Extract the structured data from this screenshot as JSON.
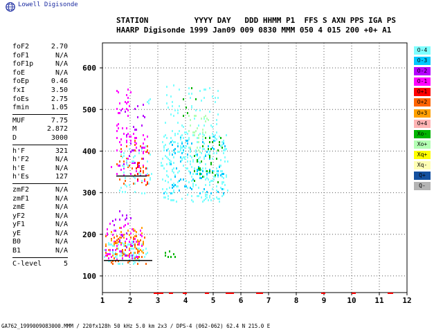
{
  "logo": {
    "text": "Lowell Digisonde",
    "icon": "globe-icon"
  },
  "header": {
    "line1": "STATION          YYYY DAY   DDD HHMM P1  FFS S AXN PPS IGA PS",
    "line2": "HAARP Digisonde 1999 Jan09 009 0830 MMM 050 4 015 200 +0+ A1"
  },
  "params": {
    "group1": [
      {
        "label": "foF2",
        "value": "2.70"
      },
      {
        "label": "foF1",
        "value": "N/A"
      },
      {
        "label": "foF1p",
        "value": "N/A"
      },
      {
        "label": "foE",
        "value": "N/A"
      },
      {
        "label": "foEp",
        "value": "0.46"
      },
      {
        "label": "fxI",
        "value": "3.50"
      },
      {
        "label": "foEs",
        "value": "2.75"
      },
      {
        "label": "fmin",
        "value": "1.05"
      }
    ],
    "group2": [
      {
        "label": "MUF",
        "value": "7.75"
      },
      {
        "label": "M",
        "value": "2.872"
      },
      {
        "label": "D",
        "value": "3000"
      }
    ],
    "group3": [
      {
        "label": "h'F",
        "value": "321"
      },
      {
        "label": "h'F2",
        "value": "N/A"
      },
      {
        "label": "h'E",
        "value": "N/A"
      },
      {
        "label": "h'Es",
        "value": "127"
      }
    ],
    "group4": [
      {
        "label": "zmF2",
        "value": "N/A"
      },
      {
        "label": "zmF1",
        "value": "N/A"
      },
      {
        "label": "zmE",
        "value": "N/A"
      },
      {
        "label": "yF2",
        "value": "N/A"
      },
      {
        "label": "yF1",
        "value": "N/A"
      },
      {
        "label": "yE",
        "value": "N/A"
      },
      {
        "label": "B0",
        "value": "N/A"
      },
      {
        "label": "B1",
        "value": "N/A"
      }
    ],
    "group5": [
      {
        "label": "C-level",
        "value": "5"
      }
    ]
  },
  "legend": [
    {
      "label": "O-4",
      "color": "#7fffff"
    },
    {
      "label": "O-3",
      "color": "#00c8ff"
    },
    {
      "label": "O-2",
      "color": "#b400ff"
    },
    {
      "label": "O-1",
      "color": "#ff00ff"
    },
    {
      "label": "O+1",
      "color": "#ff0000"
    },
    {
      "label": "O+2",
      "color": "#ff6400"
    },
    {
      "label": "O+3",
      "color": "#ffa000"
    },
    {
      "label": "O+4",
      "color": "#ffb4b4"
    },
    {
      "label": "Xo-",
      "color": "#00b400"
    },
    {
      "label": "Xo+",
      "color": "#b4ffb4"
    },
    {
      "label": "Xq+",
      "color": "#ffff00"
    },
    {
      "label": "Xq-",
      "color": "#ffffb4"
    },
    {
      "label": "Q+",
      "color": "#1450a0"
    },
    {
      "label": "Q-",
      "color": "#b4b4b4"
    }
  ],
  "footer": "GA762_1999009083000.MMM / 220fx128h 50 kHz 5.0 km 2x3 / DPS-4 (062-062) 62.4 N 215.0 E",
  "chart_data": {
    "type": "scatter",
    "xlim": [
      1,
      12
    ],
    "ylim": [
      60,
      660
    ],
    "x_ticks": [
      1,
      2,
      3,
      4,
      5,
      6,
      7,
      8,
      9,
      10,
      11,
      12
    ],
    "y_ticks": [
      100,
      200,
      300,
      400,
      500,
      600
    ],
    "grid": true,
    "es_trace": {
      "x": [
        1.05,
        2.8
      ],
      "y": [
        137,
        137
      ]
    },
    "f_trace": {
      "x": [
        1.5,
        2.6
      ],
      "y": [
        340,
        340
      ]
    },
    "freq_markers": [
      {
        "x": [
          2.85,
          3.2
        ]
      },
      {
        "x": [
          3.4,
          3.55
        ]
      },
      {
        "x": [
          3.9,
          4.05
        ]
      },
      {
        "x": [
          4.7,
          4.85
        ]
      },
      {
        "x": [
          5.45,
          5.75
        ]
      },
      {
        "x": [
          6.55,
          6.8
        ]
      },
      {
        "x": [
          8.9,
          9.05
        ]
      },
      {
        "x": [
          10.0,
          10.15
        ]
      },
      {
        "x": [
          11.3,
          11.5
        ]
      }
    ],
    "echo_clusters": [
      {
        "x": [
          1.05,
          2.6
        ],
        "y": [
          130,
          185
        ],
        "color": "#7fffff",
        "density": 90
      },
      {
        "x": [
          1.05,
          2.6
        ],
        "y": [
          130,
          200
        ],
        "color": "#ff6400",
        "density": 60
      },
      {
        "x": [
          1.1,
          2.4
        ],
        "y": [
          140,
          230
        ],
        "color": "#ff00ff",
        "density": 50
      },
      {
        "x": [
          1.1,
          2.5
        ],
        "y": [
          150,
          220
        ],
        "color": "#ffa000",
        "density": 45
      },
      {
        "x": [
          1.3,
          2.2
        ],
        "y": [
          150,
          260
        ],
        "color": "#b400ff",
        "density": 25
      },
      {
        "x": [
          1.3,
          2.6
        ],
        "y": [
          330,
          440
        ],
        "color": "#ff00ff",
        "density": 45
      },
      {
        "x": [
          1.5,
          2.7
        ],
        "y": [
          320,
          430
        ],
        "color": "#ff6400",
        "density": 40
      },
      {
        "x": [
          1.5,
          2.2
        ],
        "y": [
          420,
          560
        ],
        "color": "#ff00ff",
        "density": 35
      },
      {
        "x": [
          1.6,
          2.8
        ],
        "y": [
          300,
          420
        ],
        "color": "#7fffff",
        "density": 50
      },
      {
        "x": [
          1.6,
          2.5
        ],
        "y": [
          360,
          520
        ],
        "color": "#b400ff",
        "density": 25
      },
      {
        "x": [
          3.1,
          5.5
        ],
        "y": [
          280,
          450
        ],
        "color": "#7fffff",
        "density": 250
      },
      {
        "x": [
          3.2,
          5.4
        ],
        "y": [
          300,
          440
        ],
        "color": "#00c8ff",
        "density": 80
      },
      {
        "x": [
          3.2,
          5.2
        ],
        "y": [
          380,
          560
        ],
        "color": "#7fffff",
        "density": 90
      },
      {
        "x": [
          4.3,
          5.3
        ],
        "y": [
          320,
          440
        ],
        "color": "#00b400",
        "density": 35
      },
      {
        "x": [
          4.1,
          4.8
        ],
        "y": [
          400,
          500
        ],
        "color": "#b4ffb4",
        "density": 30
      },
      {
        "x": [
          3.2,
          3.6
        ],
        "y": [
          145,
          160
        ],
        "color": "#00b400",
        "density": 8
      },
      {
        "x": [
          3.9,
          4.4
        ],
        "y": [
          470,
          560
        ],
        "color": "#00b400",
        "density": 6
      },
      {
        "x": [
          2.2,
          2.6
        ],
        "y": [
          320,
          380
        ],
        "color": "#ff0000",
        "density": 10
      },
      {
        "x": [
          2.6,
          2.7
        ],
        "y": [
          500,
          540
        ],
        "color": "#7fffff",
        "density": 5
      }
    ]
  }
}
